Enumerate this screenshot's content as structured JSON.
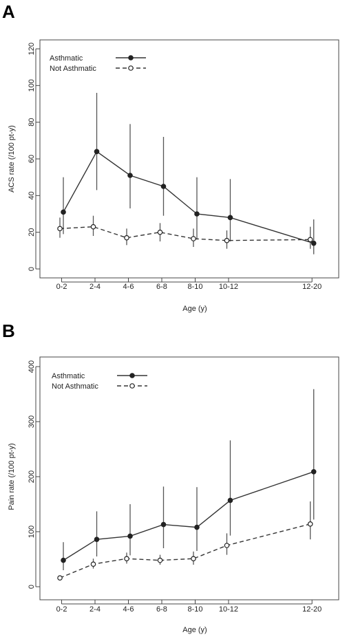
{
  "chart_data": [
    {
      "panel": "A",
      "type": "line",
      "xlabel": "Age (y)",
      "ylabel": "ACS rate (/100 pt-y)",
      "categories": [
        "0-2",
        "2-4",
        "4-6",
        "6-8",
        "8-10",
        "10-12",
        "12-20"
      ],
      "x": [
        1,
        3,
        5,
        7,
        9,
        11,
        16
      ],
      "ylim": [
        0,
        120
      ],
      "yticks": [
        0,
        20,
        40,
        60,
        80,
        100,
        120
      ],
      "series": [
        {
          "name": "Asthmatic",
          "style": "solid",
          "marker": "filled",
          "values": [
            31,
            64,
            51,
            45,
            30,
            28,
            14
          ],
          "ci_low": [
            19,
            43,
            33,
            29,
            16,
            15,
            8
          ],
          "ci_high": [
            50,
            96,
            79,
            72,
            50,
            49,
            27
          ]
        },
        {
          "name": "Not Asthmatic",
          "style": "dashed",
          "marker": "open",
          "values": [
            22,
            23,
            17,
            20,
            16.5,
            15.5,
            16
          ],
          "ci_low": [
            17,
            18,
            13,
            15,
            12,
            11,
            11
          ],
          "ci_high": [
            28,
            29,
            22,
            25,
            22,
            21,
            23
          ]
        }
      ]
    },
    {
      "panel": "B",
      "type": "line",
      "xlabel": "Age (y)",
      "ylabel": "Pain rate (/100 pt-y)",
      "categories": [
        "0-2",
        "2-4",
        "4-6",
        "6-8",
        "8-10",
        "10-12",
        "12-20"
      ],
      "x": [
        1,
        3,
        5,
        7,
        9,
        11,
        16
      ],
      "ylim": [
        0,
        400
      ],
      "yticks": [
        0,
        100,
        200,
        300,
        400
      ],
      "series": [
        {
          "name": "Asthmatic",
          "style": "solid",
          "marker": "filled",
          "values": [
            48,
            86,
            92,
            113,
            108,
            157,
            209
          ],
          "ci_low": [
            30,
            55,
            57,
            70,
            65,
            93,
            122
          ],
          "ci_high": [
            81,
            137,
            150,
            182,
            181,
            266,
            359
          ]
        },
        {
          "name": "Not Asthmatic",
          "style": "dashed",
          "marker": "open",
          "values": [
            16,
            41,
            51,
            48,
            51,
            75,
            114
          ],
          "ci_low": [
            12,
            33,
            42,
            40,
            40,
            58,
            86
          ],
          "ci_high": [
            20,
            51,
            62,
            58,
            64,
            97,
            155
          ]
        }
      ]
    }
  ],
  "panels": {
    "a_letter": "A",
    "b_letter": "B"
  }
}
